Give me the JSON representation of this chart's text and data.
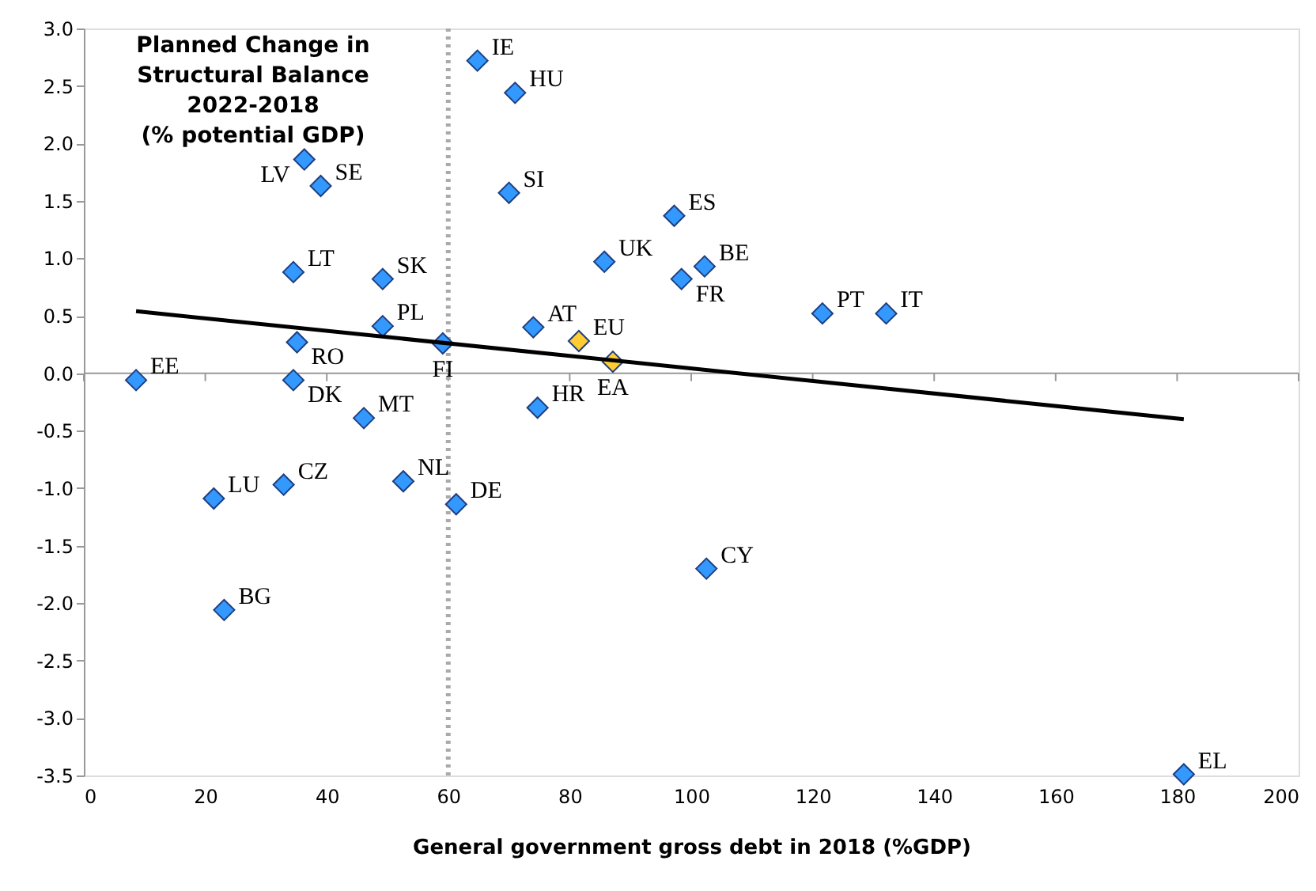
{
  "chart_data": {
    "type": "scatter",
    "title": "Planned Change in\nStructural Balance\n2022-2018\n(% potential GDP)",
    "xlabel": "General government gross debt in 2018 (%GDP)",
    "series": [
      {
        "color": "#3399ff",
        "x": [
          64.8,
          71.0,
          36.3,
          39.0,
          70.0,
          34.5,
          49.2,
          85.7,
          97.2,
          102.2,
          98.4,
          121.6,
          132.1,
          74.0,
          49.2,
          59.1,
          35.1,
          34.5,
          8.6,
          46.1,
          74.7,
          32.9,
          21.4,
          52.6,
          61.3,
          23.1,
          102.5,
          181.1
        ],
        "values": [
          2.72,
          2.44,
          1.86,
          1.63,
          1.57,
          0.88,
          0.82,
          0.97,
          1.37,
          0.93,
          0.82,
          0.52,
          0.52,
          0.4,
          0.41,
          0.26,
          0.27,
          -0.06,
          -0.06,
          -0.39,
          -0.3,
          -0.97,
          -1.09,
          -0.94,
          -1.14,
          -2.06,
          -1.7,
          -3.49
        ]
      },
      {
        "color": "#ffcc33",
        "x": [
          81.5,
          87.1
        ],
        "values": [
          0.28,
          0.1
        ]
      },
      {
        "type": "line",
        "color": "#000000",
        "x": [
          8.6,
          181.1
        ],
        "values": [
          0.54,
          -0.4
        ],
        "marker": "none",
        "line_style": "solid"
      }
    ],
    "annotations": [
      {
        "text": "IE",
        "x": 64.8,
        "y": 2.72
      },
      {
        "text": "HU",
        "x": 71.0,
        "y": 2.44
      },
      {
        "text": "LV",
        "x": 36.3,
        "y": 1.86
      },
      {
        "text": "SE",
        "x": 39.0,
        "y": 1.63
      },
      {
        "text": "SI",
        "x": 70.0,
        "y": 1.57
      },
      {
        "text": "LT",
        "x": 34.5,
        "y": 0.88
      },
      {
        "text": "SK",
        "x": 49.2,
        "y": 0.82
      },
      {
        "text": "UK",
        "x": 85.7,
        "y": 0.97
      },
      {
        "text": "ES",
        "x": 97.2,
        "y": 1.37
      },
      {
        "text": "BE",
        "x": 102.2,
        "y": 0.93
      },
      {
        "text": "FR",
        "x": 98.4,
        "y": 0.82
      },
      {
        "text": "PT",
        "x": 121.6,
        "y": 0.52
      },
      {
        "text": "IT",
        "x": 132.1,
        "y": 0.52
      },
      {
        "text": "AT",
        "x": 74.0,
        "y": 0.4
      },
      {
        "text": "PL",
        "x": 49.2,
        "y": 0.41
      },
      {
        "text": "FI",
        "x": 59.1,
        "y": 0.26
      },
      {
        "text": "RO",
        "x": 35.1,
        "y": 0.27
      },
      {
        "text": "DK",
        "x": 34.5,
        "y": -0.06
      },
      {
        "text": "EE",
        "x": 8.6,
        "y": -0.06
      },
      {
        "text": "MT",
        "x": 46.1,
        "y": -0.39
      },
      {
        "text": "HR",
        "x": 74.7,
        "y": -0.3
      },
      {
        "text": "CZ",
        "x": 32.9,
        "y": -0.97
      },
      {
        "text": "LU",
        "x": 21.4,
        "y": -1.09
      },
      {
        "text": "NL",
        "x": 52.6,
        "y": -0.94
      },
      {
        "text": "DE",
        "x": 61.3,
        "y": -1.14
      },
      {
        "text": "BG",
        "x": 23.1,
        "y": -2.06
      },
      {
        "text": "CY",
        "x": 102.5,
        "y": -1.7
      },
      {
        "text": "EL",
        "x": 181.1,
        "y": -3.49
      },
      {
        "text": "EU",
        "x": 81.5,
        "y": 0.28
      },
      {
        "text": "EA",
        "x": 87.1,
        "y": 0.1
      }
    ],
    "ref_lines": [
      {
        "axis": "x",
        "value": 60,
        "color": "#aaaaaa",
        "line_style": "dotted"
      }
    ],
    "marker": "diamond",
    "grid": false,
    "xlim": [
      0,
      200
    ],
    "xticks": [
      0,
      20,
      40,
      60,
      80,
      100,
      120,
      140,
      160,
      180,
      200
    ],
    "ylim": [
      -3.5,
      3.0
    ],
    "yticks": [
      {
        "value": -3.5,
        "label": "-3.5"
      },
      {
        "value": -3,
        "label": "-3.0"
      },
      {
        "value": -2.5,
        "label": "-2.5"
      },
      {
        "value": -2,
        "label": "-2.0"
      },
      {
        "value": -1.5,
        "label": "-1.5"
      },
      {
        "value": -1,
        "label": "-1.0"
      },
      {
        "value": -0.5,
        "label": "-0.5"
      },
      {
        "value": 0,
        "label": "0.0"
      },
      {
        "value": 0.5,
        "label": "0.5"
      },
      {
        "value": 1,
        "label": "1.0"
      },
      {
        "value": 1.5,
        "label": "1.5"
      },
      {
        "value": 2,
        "label": "2.0"
      },
      {
        "value": 2.5,
        "label": "2.5"
      },
      {
        "value": 3,
        "label": "3.0"
      }
    ]
  }
}
